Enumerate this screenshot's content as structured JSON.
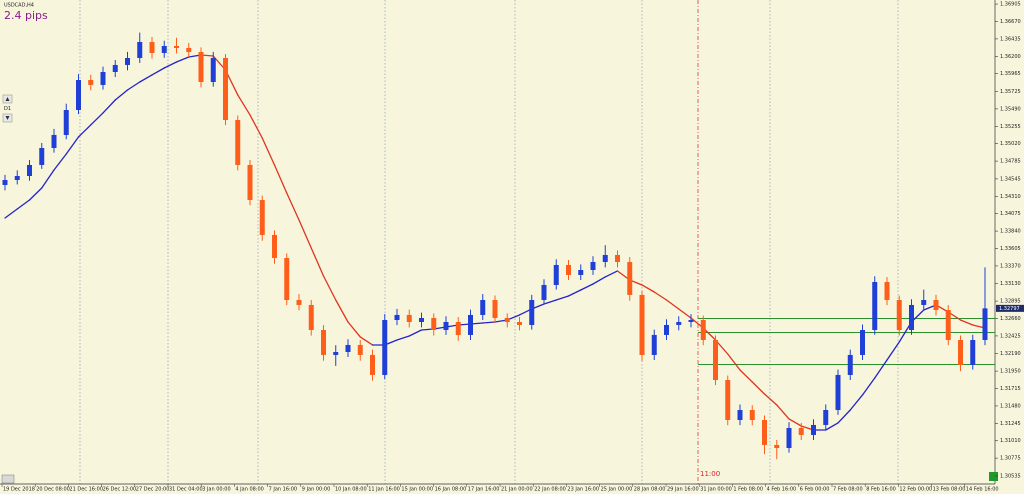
{
  "chart_data": {
    "type": "candlestick",
    "title": "USDCAD,H4",
    "annotation": "2.4 pips",
    "timeframe_button": "D1",
    "vline_label": "11:00",
    "current_price": 1.32797,
    "levels": [
      1.3266,
      1.32471,
      1.32039
    ],
    "level_color": "#2e8f2e",
    "up_color": "#1f3fd6",
    "down_color": "#ff5e1a",
    "ma": {
      "up_color": "#2424c8",
      "down_color": "#e0341f",
      "values": [
        1.34017,
        1.34139,
        1.3426,
        1.34422,
        1.34665,
        1.34881,
        1.35111,
        1.35273,
        1.35435,
        1.3561,
        1.35745,
        1.35853,
        1.35948,
        1.36042,
        1.36123,
        1.36191,
        1.36218,
        1.36204,
        1.36015,
        1.35678,
        1.35408,
        1.35097,
        1.34733,
        1.34355,
        1.3399,
        1.33612,
        1.33234,
        1.3291,
        1.32613,
        1.32411,
        1.32303,
        1.32303,
        1.3237,
        1.32424,
        1.32505,
        1.32519,
        1.32546,
        1.32573,
        1.32586,
        1.326,
        1.32613,
        1.3264,
        1.32708,
        1.32789,
        1.32856,
        1.3291,
        1.32964,
        1.33045,
        1.33126,
        1.33221,
        1.33302,
        1.3318,
        1.33113,
        1.33018,
        1.3291,
        1.32789,
        1.32667,
        1.32532,
        1.3237,
        1.32181,
        1.31965,
        1.31803,
        1.31641,
        1.31493,
        1.31304,
        1.31209,
        1.31155,
        1.31155,
        1.3125,
        1.31425,
        1.31628,
        1.31857,
        1.321,
        1.32343,
        1.32613,
        1.32775,
        1.32843,
        1.32748,
        1.3264,
        1.32573,
        1.32532
      ]
    },
    "candles": [
      [
        1.34463,
        1.346,
        1.3439,
        1.3453
      ],
      [
        1.3453,
        1.3466,
        1.3447,
        1.34584
      ],
      [
        1.34584,
        1.348,
        1.3452,
        1.34733
      ],
      [
        1.34733,
        1.3503,
        1.3468,
        1.34962
      ],
      [
        1.34962,
        1.3522,
        1.349,
        1.35138
      ],
      [
        1.35138,
        1.3556,
        1.3508,
        1.35475
      ],
      [
        1.35475,
        1.3596,
        1.3542,
        1.3588
      ],
      [
        1.3588,
        1.3595,
        1.3574,
        1.35813
      ],
      [
        1.35813,
        1.3606,
        1.3575,
        1.35988
      ],
      [
        1.35988,
        1.3615,
        1.3592,
        1.36083
      ],
      [
        1.36083,
        1.3626,
        1.3601,
        1.36177
      ],
      [
        1.36177,
        1.3652,
        1.3611,
        1.36393
      ],
      [
        1.36393,
        1.3646,
        1.3617,
        1.36245
      ],
      [
        1.36245,
        1.3641,
        1.3618,
        1.36339
      ],
      [
        1.36339,
        1.3645,
        1.3624,
        1.36312
      ],
      [
        1.36312,
        1.3638,
        1.3619,
        1.36258
      ],
      [
        1.36258,
        1.3632,
        1.3578,
        1.35853
      ],
      [
        1.35853,
        1.3626,
        1.3579,
        1.36177
      ],
      [
        1.36177,
        1.3623,
        1.3527,
        1.3534
      ],
      [
        1.3534,
        1.354,
        1.3466,
        1.34733
      ],
      [
        1.34733,
        1.348,
        1.3419,
        1.3426
      ],
      [
        1.3426,
        1.3432,
        1.3371,
        1.33788
      ],
      [
        1.33788,
        1.3385,
        1.334,
        1.33477
      ],
      [
        1.33477,
        1.3354,
        1.3284,
        1.3291
      ],
      [
        1.3291,
        1.3299,
        1.3277,
        1.32843
      ],
      [
        1.32843,
        1.3291,
        1.3243,
        1.32505
      ],
      [
        1.32505,
        1.3257,
        1.3209,
        1.32168
      ],
      [
        1.32168,
        1.323,
        1.3202,
        1.32208
      ],
      [
        1.32208,
        1.3238,
        1.3214,
        1.32303
      ],
      [
        1.32303,
        1.3237,
        1.3209,
        1.32168
      ],
      [
        1.32168,
        1.3224,
        1.3182,
        1.31898
      ],
      [
        1.31898,
        1.3272,
        1.3184,
        1.3264
      ],
      [
        1.3264,
        1.3279,
        1.3257,
        1.32708
      ],
      [
        1.32708,
        1.3278,
        1.3254,
        1.32613
      ],
      [
        1.32613,
        1.3274,
        1.3254,
        1.32667
      ],
      [
        1.32667,
        1.3273,
        1.3243,
        1.32505
      ],
      [
        1.32505,
        1.3269,
        1.3244,
        1.32613
      ],
      [
        1.32613,
        1.3268,
        1.3236,
        1.32438
      ],
      [
        1.32438,
        1.3278,
        1.3237,
        1.32708
      ],
      [
        1.32708,
        1.3299,
        1.3264,
        1.3291
      ],
      [
        1.3291,
        1.3297,
        1.326,
        1.32667
      ],
      [
        1.32667,
        1.3273,
        1.3254,
        1.32613
      ],
      [
        1.32613,
        1.3268,
        1.325,
        1.32573
      ],
      [
        1.32573,
        1.3298,
        1.3251,
        1.3291
      ],
      [
        1.3291,
        1.3319,
        1.3285,
        1.33113
      ],
      [
        1.33113,
        1.3346,
        1.3305,
        1.33383
      ],
      [
        1.33383,
        1.3345,
        1.3318,
        1.33248
      ],
      [
        1.33248,
        1.3339,
        1.3318,
        1.33315
      ],
      [
        1.33315,
        1.335,
        1.3325,
        1.33423
      ],
      [
        1.33423,
        1.3365,
        1.3335,
        1.33518
      ],
      [
        1.33518,
        1.3358,
        1.3335,
        1.33423
      ],
      [
        1.33423,
        1.3349,
        1.329,
        1.32978
      ],
      [
        1.32978,
        1.3304,
        1.3209,
        1.32168
      ],
      [
        1.32168,
        1.3251,
        1.321,
        1.32438
      ],
      [
        1.32438,
        1.3265,
        1.3237,
        1.32573
      ],
      [
        1.32573,
        1.3269,
        1.325,
        1.32613
      ],
      [
        1.32613,
        1.3272,
        1.3254,
        1.3264
      ],
      [
        1.3264,
        1.327,
        1.323,
        1.3237
      ],
      [
        1.3237,
        1.3243,
        1.3176,
        1.3183
      ],
      [
        1.3183,
        1.3189,
        1.3122,
        1.3129
      ],
      [
        1.3129,
        1.315,
        1.3122,
        1.31425
      ],
      [
        1.31425,
        1.3149,
        1.3122,
        1.3129
      ],
      [
        1.3129,
        1.3135,
        1.3083,
        1.30953
      ],
      [
        1.30953,
        1.3102,
        1.3076,
        1.30912
      ],
      [
        1.30912,
        1.3126,
        1.3085,
        1.31182
      ],
      [
        1.31182,
        1.3125,
        1.3102,
        1.31088
      ],
      [
        1.31088,
        1.313,
        1.3102,
        1.31223
      ],
      [
        1.31223,
        1.315,
        1.3116,
        1.31425
      ],
      [
        1.31425,
        1.3197,
        1.3136,
        1.31898
      ],
      [
        1.31898,
        1.3224,
        1.3183,
        1.32168
      ],
      [
        1.32168,
        1.3258,
        1.321,
        1.32505
      ],
      [
        1.32505,
        1.3323,
        1.3244,
        1.33153
      ],
      [
        1.33153,
        1.3322,
        1.3284,
        1.3291
      ],
      [
        1.3291,
        1.3297,
        1.3243,
        1.32505
      ],
      [
        1.32505,
        1.3292,
        1.3244,
        1.32843
      ],
      [
        1.32843,
        1.3305,
        1.3277,
        1.3291
      ],
      [
        1.3291,
        1.3298,
        1.327,
        1.32775
      ],
      [
        1.32775,
        1.3284,
        1.323,
        1.3237
      ],
      [
        1.3237,
        1.3243,
        1.3195,
        1.32033
      ],
      [
        1.32033,
        1.3244,
        1.3197,
        1.3237
      ],
      [
        1.3237,
        1.3335,
        1.323,
        1.32797
      ]
    ],
    "x_labels": [
      "19 Dec 2018",
      "20 Dec 08:00",
      "21 Dec 16:00",
      "26 Dec 12:00",
      "27 Dec 20:00",
      "31 Dec 04:00",
      "3 Jan 00:00",
      "4 Jan 08:00",
      "7 Jan 16:00",
      "9 Jan 00:00",
      "10 Jan 08:00",
      "11 Jan 16:00",
      "15 Jan 00:00",
      "16 Jan 08:00",
      "17 Jan 16:00",
      "21 Jan 00:00",
      "22 Jan 08:00",
      "23 Jan 16:00",
      "25 Jan 00:00",
      "28 Jan 08:00",
      "29 Jan 16:00",
      "31 Jan 00:00",
      "1 Feb 08:00",
      "4 Feb 16:00",
      "6 Feb 00:00",
      "7 Feb 08:00",
      "8 Feb 16:00",
      "12 Feb 00:00",
      "13 Feb 08:00",
      "14 Feb 16:00"
    ],
    "ylim": [
      1.3048,
      1.3696
    ],
    "yticks": [
      1.36905,
      {
        "value": 1.3667,
        "label": "1.36670"
      },
      1.36435,
      {
        "value": 1.362,
        "label": "1.36200"
      },
      1.35965,
      1.35725,
      {
        "value": 1.3549,
        "label": "1.35490"
      },
      1.35255,
      {
        "value": 1.3502,
        "label": "1.35020"
      },
      1.34785,
      1.34545,
      {
        "value": 1.3431,
        "label": "1.34310"
      },
      1.34075,
      {
        "value": 1.3384,
        "label": "1.33840"
      },
      1.33605,
      {
        "value": 1.3337,
        "label": "1.33370"
      },
      {
        "value": 1.3313,
        "label": "1.33130"
      },
      1.32895,
      {
        "value": 1.3266,
        "label": "1.32660"
      },
      1.32425,
      {
        "value": 1.3219,
        "label": "1.32190"
      },
      {
        "value": 1.3195,
        "label": "1.31950"
      },
      1.31715,
      {
        "value": 1.3148,
        "label": "1.31480"
      },
      1.31245,
      {
        "value": 1.3101,
        "label": "1.31010"
      },
      1.30775,
      1.30535
    ]
  }
}
